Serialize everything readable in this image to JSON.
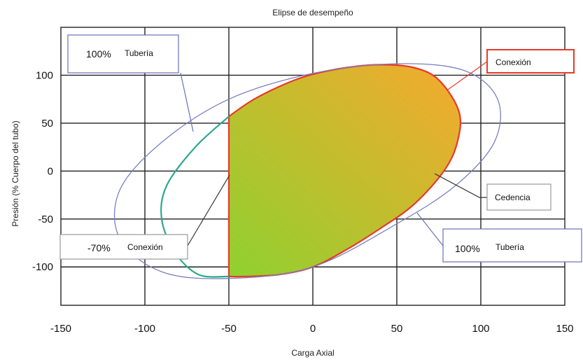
{
  "chart_data": {
    "type": "area",
    "title": "Elipse de desempeño",
    "xlabel": "Carga Axial",
    "ylabel": "Presión (% Cuerpo del tubo)",
    "xlim": [
      -150,
      150
    ],
    "ylim": [
      -140,
      150
    ],
    "x_ticks": [
      -150,
      -100,
      -50,
      0,
      50,
      100,
      150
    ],
    "y_ticks": [
      100,
      50,
      0,
      -50,
      -100
    ],
    "x_tick_labels": [
      "-150",
      "-100",
      "-50",
      "0",
      "50",
      "100",
      "150"
    ],
    "y_tick_labels": [
      "100",
      "50",
      "0",
      "-50",
      "-100"
    ],
    "grid": true,
    "series": [
      {
        "name": "100% Tubería",
        "kind": "ellipse-outline",
        "color": "#7b7fc0",
        "x": [
          0,
          50,
          90,
          110,
          108,
          85,
          50,
          0,
          -50,
          -90,
          -115,
          -115,
          -90,
          -50
        ],
        "y": [
          102,
          112,
          105,
          75,
          30,
          -15,
          -55,
          -100,
          -112,
          -105,
          -70,
          -20,
          30,
          75
        ]
      },
      {
        "name": "Cedencia",
        "kind": "ellipse-outline",
        "color": "#2ba88f",
        "x": [
          -50,
          -70,
          -87,
          -90,
          -82,
          -68,
          -50
        ],
        "y": [
          57,
          25,
          -15,
          -50,
          -85,
          -108,
          -110
        ]
      },
      {
        "name": "Conexión",
        "kind": "filled-region",
        "color": "#e83a2a",
        "fill_from": "#8fd12f",
        "fill_to": "#f6a92e",
        "x": [
          -50,
          -35,
          -15,
          0,
          20,
          40,
          60,
          75,
          87,
          86,
          78,
          60,
          40,
          20,
          0,
          -20,
          -40,
          -50,
          -50
        ],
        "y": [
          57,
          75,
          92,
          101,
          108,
          111,
          108,
          95,
          62,
          30,
          0,
          -35,
          -60,
          -82,
          -100,
          -108,
          -110,
          -110,
          57
        ]
      }
    ],
    "annotations": {
      "tuberia_top": {
        "value": "100%",
        "label": "Tubería"
      },
      "conexion": {
        "label": "Conexión"
      },
      "cedencia": {
        "label": "Cedencia"
      },
      "conexion_limit": {
        "value": "-70%",
        "label": "Conexión"
      },
      "tuberia_bottom": {
        "value": "100%",
        "label": "Tubería"
      }
    },
    "colors": {
      "grid": "#222222",
      "tuberia": "#7b7fc0",
      "cedencia": "#2ba88f",
      "conexion": "#e83a2a",
      "fill_green": "#8fd12f",
      "fill_orange": "#f6a92e",
      "box_blue": "#6c6fb8",
      "box_gray": "#9a9a9a",
      "box_red": "#e83a2a"
    }
  }
}
